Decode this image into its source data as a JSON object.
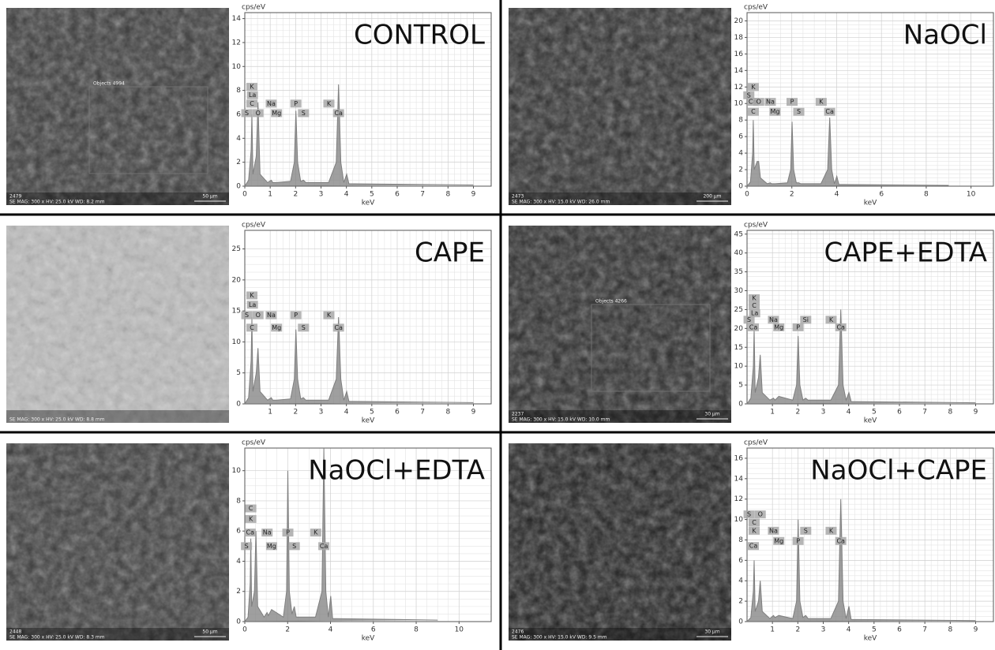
{
  "panels": [
    {
      "image": {
        "id": "2479",
        "info": "SE MAG: 300 x HV: 25.0 kV WD: 8.2 mm",
        "scale": "50 µm",
        "region": "Objects 4994"
      }
    },
    {
      "image": {
        "id": "2473",
        "info": "SE MAG: 300 x HV: 15.0 kV WD: 26.0 mm",
        "scale": "200 µm"
      }
    },
    {
      "image": {
        "info": "SE MAG: 300 x HV: 25.0 kV WD: 8.8 mm"
      }
    },
    {
      "image": {
        "id": "2237",
        "info": "SE MAG: 300 x HV: 15.0 kV WD: 10.0 mm",
        "scale": "30 µm",
        "region": "Objects 4266"
      }
    },
    {
      "image": {
        "id": "2448",
        "info": "SE MAG: 300 x HV: 25.0 kV WD: 8.3 mm",
        "scale": "50 µm"
      }
    },
    {
      "image": {
        "id": "2476",
        "info": "SE MAG: 300 x HV: 15.0 kV WD: 9.5 mm",
        "scale": "30 µm"
      }
    }
  ],
  "chart_data": [
    {
      "type": "area",
      "title": "CONTROL",
      "y_label": "cps/eV",
      "x_label": "keV",
      "color": "#7f7f7f",
      "grid": true,
      "x": [
        0,
        0.15,
        0.25,
        0.28,
        0.32,
        0.45,
        0.52,
        0.6,
        0.9,
        1.04,
        1.1,
        1.25,
        1.8,
        1.95,
        2.01,
        2.08,
        2.2,
        2.31,
        2.4,
        3.3,
        3.6,
        3.69,
        3.78,
        3.9,
        4.01,
        4.1,
        4.3,
        9
      ],
      "values": [
        0,
        0.5,
        3,
        6,
        1,
        2.5,
        7,
        1,
        0.3,
        0.5,
        0.3,
        0.3,
        0.4,
        2,
        6.3,
        2,
        0.4,
        0.5,
        0.3,
        0.3,
        2,
        8.5,
        2,
        0.3,
        1,
        0.2,
        0.2,
        0.1
      ],
      "xlim": [
        0,
        9.7
      ],
      "xticks": [
        0,
        1,
        2,
        3,
        4,
        5,
        6,
        7,
        8,
        9
      ],
      "ylim": [
        0,
        14.5
      ],
      "yticks": [
        0,
        2,
        4,
        6,
        8,
        10,
        12,
        14
      ],
      "annotations": [
        {
          "text": "K",
          "x": 0.28,
          "y": 8.3
        },
        {
          "text": "La",
          "x": 0.3,
          "y": 7.6
        },
        {
          "text": "C",
          "x": 0.28,
          "y": 6.9
        },
        {
          "text": "Na",
          "x": 1.04,
          "y": 6.9
        },
        {
          "text": "P",
          "x": 2.01,
          "y": 6.9
        },
        {
          "text": "K",
          "x": 3.31,
          "y": 6.9
        },
        {
          "text": "S",
          "x": 0.08,
          "y": 6.1
        },
        {
          "text": "O",
          "x": 0.52,
          "y": 6.1
        },
        {
          "text": "Mg",
          "x": 1.25,
          "y": 6.1
        },
        {
          "text": "S",
          "x": 2.31,
          "y": 6.1
        },
        {
          "text": "Ca",
          "x": 3.69,
          "y": 6.1
        }
      ]
    },
    {
      "type": "area",
      "title": "NaOCl",
      "y_label": "cps/eV",
      "x_label": "keV",
      "color": "#7f7f7f",
      "grid": true,
      "x": [
        0,
        0.15,
        0.25,
        0.28,
        0.32,
        0.45,
        0.52,
        0.6,
        0.9,
        1.04,
        1.1,
        1.25,
        1.8,
        1.95,
        2.01,
        2.08,
        2.2,
        2.31,
        2.4,
        3.3,
        3.6,
        3.69,
        3.78,
        3.9,
        4.01,
        4.1,
        4.3,
        9
      ],
      "values": [
        0,
        0.5,
        4,
        8,
        2,
        3,
        3,
        1,
        0.3,
        0.4,
        0.3,
        0.3,
        0.4,
        2,
        7.8,
        2,
        0.4,
        0.4,
        0.3,
        0.3,
        2,
        8.3,
        2,
        0.3,
        1.2,
        0.2,
        0.2,
        0.1
      ],
      "xlim": [
        0,
        11
      ],
      "xticks": [
        0,
        2,
        4,
        6,
        8,
        10
      ],
      "ylim": [
        0,
        21
      ],
      "yticks": [
        0,
        2,
        4,
        6,
        8,
        10,
        12,
        14,
        16,
        18,
        20
      ],
      "annotations": [
        {
          "text": "K",
          "x": 0.28,
          "y": 12
        },
        {
          "text": "S",
          "x": 0.08,
          "y": 11
        },
        {
          "text": "Ca",
          "x": 0.25,
          "y": 10.2
        },
        {
          "text": "O",
          "x": 0.52,
          "y": 10.2
        },
        {
          "text": "Na",
          "x": 1.04,
          "y": 10.2
        },
        {
          "text": "P",
          "x": 2.01,
          "y": 10.2
        },
        {
          "text": "K",
          "x": 3.31,
          "y": 10.2
        },
        {
          "text": "C",
          "x": 0.28,
          "y": 9
        },
        {
          "text": "Mg",
          "x": 1.25,
          "y": 9
        },
        {
          "text": "S",
          "x": 2.31,
          "y": 9
        },
        {
          "text": "Ca",
          "x": 3.69,
          "y": 9
        }
      ]
    },
    {
      "type": "area",
      "title": "CAPE",
      "y_label": "cps/eV",
      "x_label": "keV",
      "color": "#7f7f7f",
      "grid": true,
      "x": [
        0,
        0.15,
        0.25,
        0.28,
        0.32,
        0.45,
        0.52,
        0.6,
        0.9,
        1.04,
        1.1,
        1.25,
        1.8,
        1.95,
        2.01,
        2.08,
        2.2,
        2.31,
        2.4,
        3.3,
        3.6,
        3.69,
        3.78,
        3.9,
        4.01,
        4.1,
        4.3,
        9
      ],
      "values": [
        0,
        1,
        7,
        14,
        2,
        5,
        9,
        2,
        0.6,
        1,
        0.6,
        0.6,
        0.8,
        4,
        12,
        4,
        0.8,
        1,
        0.6,
        0.6,
        4,
        14,
        4,
        0.6,
        2,
        0.4,
        0.4,
        0.2
      ],
      "xlim": [
        0,
        9.7
      ],
      "xticks": [
        1,
        2,
        3,
        4,
        5,
        6,
        7,
        8,
        9
      ],
      "ylim": [
        0,
        28
      ],
      "yticks": [
        0,
        5,
        10,
        15,
        20,
        25
      ],
      "annotations": [
        {
          "text": "K",
          "x": 0.28,
          "y": 17.5
        },
        {
          "text": "La",
          "x": 0.3,
          "y": 16
        },
        {
          "text": "S",
          "x": 0.08,
          "y": 14.3
        },
        {
          "text": "O",
          "x": 0.52,
          "y": 14.3
        },
        {
          "text": "Na",
          "x": 1.04,
          "y": 14.3
        },
        {
          "text": "P",
          "x": 2.01,
          "y": 14.3
        },
        {
          "text": "K",
          "x": 3.31,
          "y": 14.3
        },
        {
          "text": "C",
          "x": 0.28,
          "y": 12.3
        },
        {
          "text": "Mg",
          "x": 1.25,
          "y": 12.3
        },
        {
          "text": "S",
          "x": 2.31,
          "y": 12.3
        },
        {
          "text": "Ca",
          "x": 3.69,
          "y": 12.3
        }
      ]
    },
    {
      "type": "area",
      "title": "CAPE+EDTA",
      "y_label": "cps/eV",
      "x_label": "keV",
      "color": "#7f7f7f",
      "grid": true,
      "x": [
        0,
        0.15,
        0.25,
        0.28,
        0.32,
        0.45,
        0.52,
        0.6,
        0.9,
        1.04,
        1.1,
        1.25,
        1.8,
        1.95,
        2.01,
        2.08,
        2.2,
        2.31,
        2.4,
        3.3,
        3.6,
        3.69,
        3.78,
        3.9,
        4.01,
        4.1,
        4.3,
        9
      ],
      "values": [
        0,
        1.5,
        10,
        20,
        3,
        7,
        13,
        3,
        1,
        1.5,
        1,
        2,
        1,
        5,
        18,
        5,
        1,
        1.5,
        1,
        1,
        5,
        25,
        5,
        1,
        3,
        0.6,
        0.6,
        0.3
      ],
      "xlim": [
        0,
        9.7
      ],
      "xticks": [
        1,
        2,
        3,
        4,
        5,
        6,
        7,
        8,
        9
      ],
      "ylim": [
        0,
        46
      ],
      "yticks": [
        0,
        5,
        10,
        15,
        20,
        25,
        30,
        35,
        40,
        45
      ],
      "annotations": [
        {
          "text": "K",
          "x": 0.28,
          "y": 28
        },
        {
          "text": "C",
          "x": 0.28,
          "y": 26
        },
        {
          "text": "La",
          "x": 0.3,
          "y": 24
        },
        {
          "text": "S",
          "x": 0.08,
          "y": 22.3
        },
        {
          "text": "Na",
          "x": 1.04,
          "y": 22.3
        },
        {
          "text": "Si",
          "x": 2.31,
          "y": 22.3
        },
        {
          "text": "K",
          "x": 3.31,
          "y": 22.3
        },
        {
          "text": "Ca",
          "x": 0.25,
          "y": 20.3
        },
        {
          "text": "Mg",
          "x": 1.25,
          "y": 20.3
        },
        {
          "text": "P",
          "x": 2.01,
          "y": 20.3
        },
        {
          "text": "Ca",
          "x": 3.69,
          "y": 20.3
        }
      ]
    },
    {
      "type": "area",
      "title": "NaOCl+EDTA",
      "y_label": "cps/eV",
      "x_label": "keV",
      "color": "#7f7f7f",
      "grid": true,
      "x": [
        0,
        0.15,
        0.25,
        0.28,
        0.32,
        0.45,
        0.52,
        0.6,
        0.9,
        1.04,
        1.1,
        1.25,
        1.8,
        1.95,
        2.01,
        2.08,
        2.2,
        2.31,
        2.4,
        3.3,
        3.6,
        3.69,
        3.78,
        3.9,
        4.01,
        4.1,
        4.3,
        9
      ],
      "values": [
        0,
        0.3,
        2.5,
        5.5,
        1,
        2,
        6,
        1,
        0.3,
        0.6,
        0.4,
        0.8,
        0.3,
        2,
        10,
        2,
        0.5,
        1,
        0.3,
        0.3,
        2,
        11.5,
        2,
        0.3,
        1.7,
        0.2,
        0.2,
        0.1
      ],
      "xlim": [
        0,
        11.5
      ],
      "xticks": [
        0,
        2,
        4,
        6,
        8,
        10
      ],
      "ylim": [
        0,
        11.5
      ],
      "yticks": [
        0,
        2,
        4,
        6,
        8,
        10
      ],
      "annotations": [
        {
          "text": "C",
          "x": 0.28,
          "y": 7.5
        },
        {
          "text": "K",
          "x": 0.28,
          "y": 6.8
        },
        {
          "text": "Ca",
          "x": 0.25,
          "y": 5.9
        },
        {
          "text": "Na",
          "x": 1.04,
          "y": 5.9
        },
        {
          "text": "P",
          "x": 2.01,
          "y": 5.9
        },
        {
          "text": "K",
          "x": 3.31,
          "y": 5.9
        },
        {
          "text": "S",
          "x": 0.08,
          "y": 5
        },
        {
          "text": "Mg",
          "x": 1.25,
          "y": 5
        },
        {
          "text": "S",
          "x": 2.31,
          "y": 5
        },
        {
          "text": "Ca",
          "x": 3.69,
          "y": 5
        }
      ]
    },
    {
      "type": "area",
      "title": "NaOCl+CAPE",
      "y_label": "cps/eV",
      "x_label": "keV",
      "color": "#7f7f7f",
      "grid": true,
      "x": [
        0,
        0.15,
        0.25,
        0.28,
        0.32,
        0.45,
        0.52,
        0.6,
        0.9,
        1.04,
        1.1,
        1.25,
        1.8,
        1.95,
        2.01,
        2.08,
        2.2,
        2.31,
        2.4,
        3.3,
        3.6,
        3.69,
        3.78,
        3.9,
        4.01,
        4.1,
        4.3,
        9
      ],
      "values": [
        0,
        0.4,
        3,
        6,
        1,
        2,
        4,
        1,
        0.3,
        0.6,
        0.4,
        0.6,
        0.3,
        2,
        10,
        2,
        0.4,
        0.6,
        0.3,
        0.3,
        2,
        12,
        2,
        0.3,
        1.5,
        0.2,
        0.2,
        0.1
      ],
      "xlim": [
        0,
        9.7
      ],
      "xticks": [
        1,
        2,
        3,
        4,
        5,
        6,
        7,
        8,
        9
      ],
      "ylim": [
        0,
        17
      ],
      "yticks": [
        0,
        2,
        4,
        6,
        8,
        10,
        12,
        14,
        16
      ],
      "annotations": [
        {
          "text": "S",
          "x": 0.08,
          "y": 10.5
        },
        {
          "text": "O",
          "x": 0.52,
          "y": 10.5
        },
        {
          "text": "C",
          "x": 0.28,
          "y": 9.7
        },
        {
          "text": "K",
          "x": 0.28,
          "y": 8.9
        },
        {
          "text": "Na",
          "x": 1.04,
          "y": 8.9
        },
        {
          "text": "S",
          "x": 2.31,
          "y": 8.9
        },
        {
          "text": "K",
          "x": 3.31,
          "y": 8.9
        },
        {
          "text": "Ca",
          "x": 0.25,
          "y": 7.4
        },
        {
          "text": "Mg",
          "x": 1.25,
          "y": 7.9
        },
        {
          "text": "P",
          "x": 2.01,
          "y": 7.9
        },
        {
          "text": "Ca",
          "x": 3.69,
          "y": 7.9
        }
      ]
    }
  ]
}
